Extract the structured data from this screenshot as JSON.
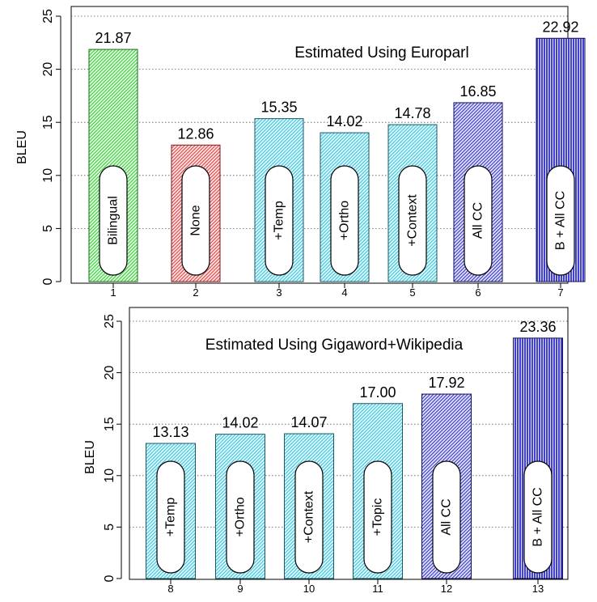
{
  "chart_data": [
    {
      "type": "bar",
      "title": "Estimated Using Europarl",
      "ylabel": "BLEU",
      "xlabel": "",
      "ylim": [
        0,
        25
      ],
      "yticks": [
        0,
        5,
        10,
        15,
        20,
        25
      ],
      "grid": "horizontal dotted",
      "categories": [
        "1",
        "2",
        "3",
        "4",
        "5",
        "6",
        "7"
      ],
      "labels": [
        "Bilingual",
        "None",
        "+Temp",
        "+Ortho",
        "+Context",
        "All CC",
        "B + All CC"
      ],
      "values": [
        21.87,
        12.86,
        15.35,
        14.02,
        14.78,
        16.85,
        22.92
      ],
      "value_labels": [
        "21.87",
        "12.86",
        "15.35",
        "14.02",
        "14.78",
        "16.85",
        "22.92"
      ],
      "colors": [
        "#44dd44",
        "#ee4444",
        "#44cce0",
        "#44cce0",
        "#44cce0",
        "#3333cc",
        "#3333cc"
      ],
      "hatch": [
        "diag",
        "diag",
        "diag",
        "diag",
        "diag",
        "diag",
        "vert"
      ]
    },
    {
      "type": "bar",
      "title": "Estimated Using Gigaword+Wikipedia",
      "ylabel": "BLEU",
      "xlabel": "",
      "ylim": [
        0,
        25
      ],
      "yticks": [
        0,
        5,
        10,
        15,
        20,
        25
      ],
      "grid": "horizontal dotted",
      "categories": [
        "8",
        "9",
        "10",
        "11",
        "12",
        "13"
      ],
      "labels": [
        "+Temp",
        "+Ortho",
        "+Context",
        "+Topic",
        "All CC",
        "B + All CC"
      ],
      "values": [
        13.13,
        14.02,
        14.07,
        17.0,
        17.92,
        23.36
      ],
      "value_labels": [
        "13.13",
        "14.02",
        "14.07",
        "17.00",
        "17.92",
        "23.36"
      ],
      "colors": [
        "#44cce0",
        "#44cce0",
        "#44cce0",
        "#44cce0",
        "#3333cc",
        "#3333cc"
      ],
      "hatch": [
        "diag",
        "diag",
        "diag",
        "diag",
        "diag",
        "vert"
      ]
    }
  ]
}
